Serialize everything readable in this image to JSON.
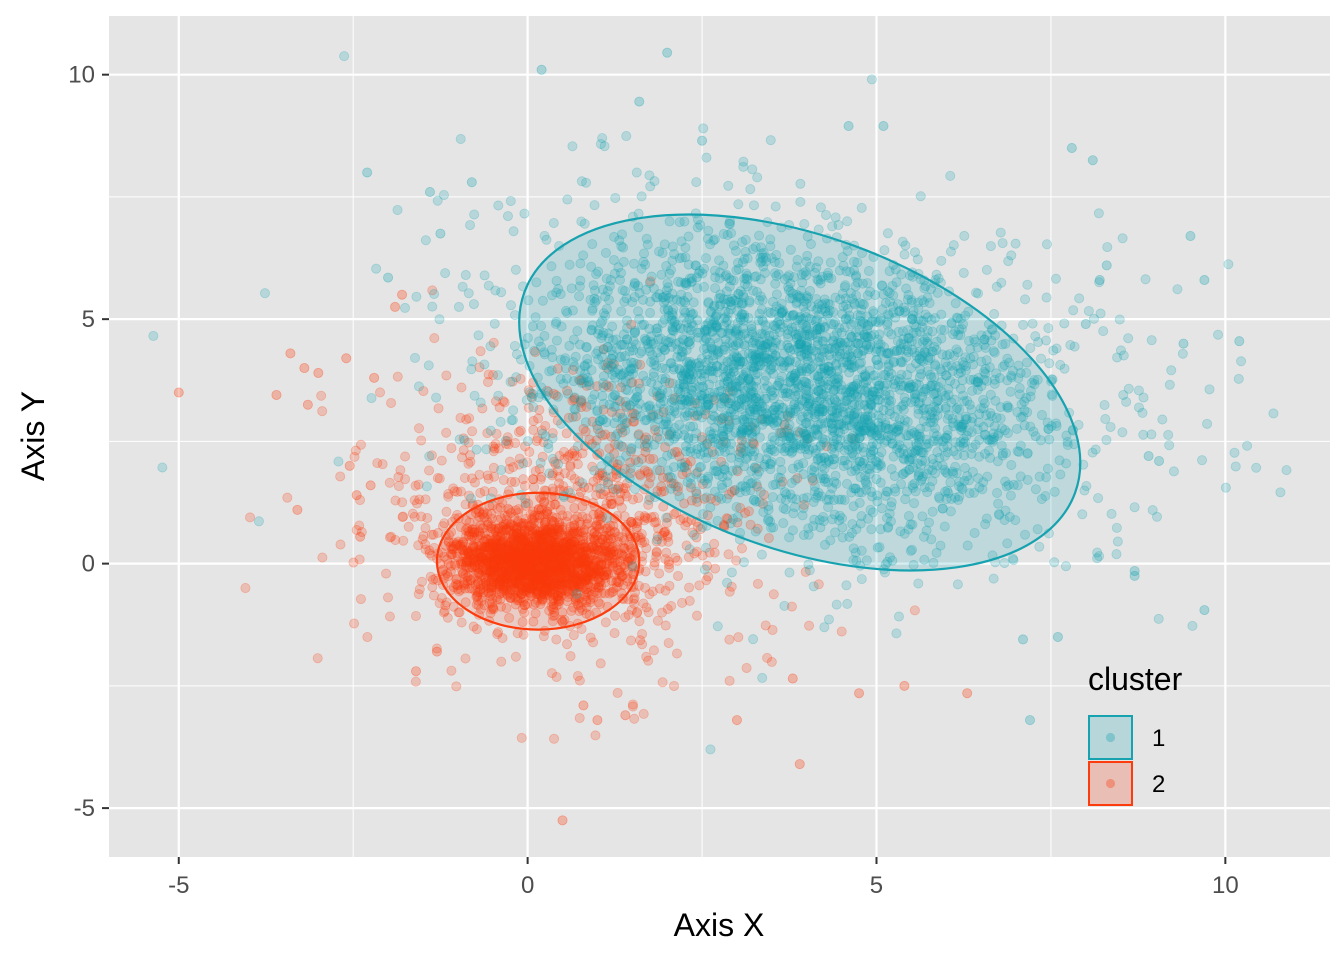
{
  "chart_data": {
    "type": "scatter",
    "title": "",
    "xlabel": "Axis X",
    "ylabel": "Axis Y",
    "xlim": [
      -6,
      11.5
    ],
    "ylim": [
      -6,
      11.2
    ],
    "x_ticks": [
      -5,
      0,
      5,
      10
    ],
    "y_ticks": [
      -5,
      0,
      5,
      10
    ],
    "x_tick_labels": [
      "-5",
      "0",
      "5",
      "10"
    ],
    "y_tick_labels": [
      "-5",
      "0",
      "5",
      "10"
    ],
    "grid": true,
    "legend": {
      "title": "cluster",
      "position": "bottom-right-inside",
      "entries": [
        {
          "label": "1",
          "color": "#17A2B0"
        },
        {
          "label": "2",
          "color": "#FC3C0C"
        }
      ]
    },
    "series": [
      {
        "name": "1",
        "color": "#17A2B0",
        "point_alpha": 0.22,
        "approx_count": 3000,
        "ellipse": {
          "center": [
            3.9,
            3.5
          ],
          "semi_axis_major": 4.2,
          "semi_axis_minor": 3.2,
          "angle_deg": -20
        },
        "outliers": [
          [
            0.2,
            10.1
          ],
          [
            2.0,
            10.45
          ],
          [
            1.6,
            9.45
          ],
          [
            -2.3,
            8.0
          ],
          [
            7.8,
            8.5
          ],
          [
            8.1,
            8.25
          ],
          [
            10.2,
            4.55
          ],
          [
            9.5,
            6.7
          ],
          [
            9.7,
            5.8
          ],
          [
            9.4,
            4.5
          ],
          [
            9.7,
            -0.95
          ],
          [
            8.7,
            -0.15
          ],
          [
            8.7,
            -0.25
          ],
          [
            7.6,
            -1.5
          ],
          [
            7.1,
            -1.55
          ],
          [
            7.2,
            -3.2
          ],
          [
            8.9,
            2.2
          ],
          [
            9.05,
            2.1
          ],
          [
            8.3,
            6.1
          ],
          [
            8.2,
            5.8
          ],
          [
            8.0,
            4.9
          ],
          [
            5.1,
            8.95
          ],
          [
            4.6,
            8.95
          ],
          [
            -1.4,
            7.6
          ],
          [
            -0.8,
            7.8
          ],
          [
            -1.25,
            6.75
          ],
          [
            -2.0,
            5.85
          ],
          [
            2.5,
            8.65
          ]
        ]
      },
      {
        "name": "2",
        "color": "#FC3C0C",
        "point_alpha": 0.22,
        "approx_count": 3000,
        "ellipse": {
          "center": [
            0.15,
            0.05
          ],
          "semi_axis_major": 1.45,
          "semi_axis_minor": 1.4,
          "angle_deg": 0
        },
        "outliers": [
          [
            -5.0,
            3.5
          ],
          [
            -3.4,
            4.3
          ],
          [
            -3.2,
            4.0
          ],
          [
            -3.0,
            3.9
          ],
          [
            -2.6,
            4.2
          ],
          [
            -3.6,
            3.45
          ],
          [
            -3.15,
            3.25
          ],
          [
            -3.3,
            1.1
          ],
          [
            -2.55,
            2.0
          ],
          [
            -2.45,
            1.4
          ],
          [
            -2.4,
            0.55
          ],
          [
            -2.25,
            1.6
          ],
          [
            -2.2,
            3.8
          ],
          [
            -1.6,
            -2.2
          ],
          [
            0.5,
            -5.25
          ],
          [
            3.0,
            -3.2
          ],
          [
            3.9,
            -4.1
          ],
          [
            1.4,
            -3.1
          ],
          [
            1.0,
            -3.2
          ],
          [
            0.8,
            -2.9
          ],
          [
            6.3,
            -2.65
          ],
          [
            5.4,
            -2.5
          ],
          [
            4.75,
            -2.65
          ],
          [
            3.8,
            -2.35
          ],
          [
            -1.3,
            -1.8
          ],
          [
            -1.8,
            5.5
          ],
          [
            -1.9,
            5.25
          ]
        ]
      }
    ]
  }
}
